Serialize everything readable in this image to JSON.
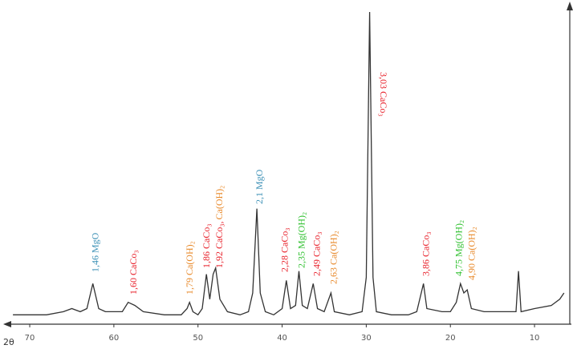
{
  "chart_data": {
    "type": "line",
    "x_label": "2θ",
    "color": "#333333",
    "xlim": [
      73,
      6
    ],
    "ylim": [
      0,
      100
    ],
    "xticks": [
      70,
      60,
      50,
      40,
      30,
      20,
      10
    ],
    "x": [
      72,
      70,
      68,
      66,
      65,
      64,
      63.2,
      62.5,
      61.8,
      61,
      59,
      58.3,
      57.5,
      56.5,
      54,
      52,
      51.3,
      51,
      50.6,
      50,
      49.5,
      49,
      48.6,
      48.2,
      47.9,
      47.4,
      46.5,
      45,
      44,
      43.5,
      43,
      42.6,
      42,
      41,
      40,
      39.5,
      39,
      38.4,
      38,
      37.6,
      37,
      36.3,
      35.8,
      35,
      34.2,
      33.8,
      32,
      30.5,
      30,
      29.6,
      29.2,
      28.8,
      27,
      25,
      24,
      23.2,
      22.8,
      21,
      20,
      19.3,
      18.8,
      18.4,
      18,
      17.5,
      16,
      14,
      12.2,
      11.9,
      11.6,
      10,
      8,
      7,
      6.5
    ],
    "values": [
      3,
      3,
      3,
      4,
      5,
      4,
      5,
      13,
      5,
      4,
      4,
      7,
      6,
      4,
      3,
      3,
      5,
      7,
      4,
      3,
      5,
      16,
      8,
      16,
      18,
      8,
      4,
      3,
      4,
      10,
      37,
      10,
      4,
      3,
      5,
      14,
      5,
      6,
      17,
      6,
      5,
      13,
      5,
      4,
      10,
      4,
      3,
      4,
      15,
      100,
      15,
      4,
      3,
      3,
      4,
      13,
      5,
      4,
      4,
      7,
      13,
      10,
      11,
      5,
      4,
      4,
      4,
      17,
      4,
      5,
      6,
      8,
      10
    ],
    "annotations": [
      {
        "x": 62.5,
        "parts": [
          {
            "text": "1,46 MgO",
            "color": "#3a8fb5"
          }
        ]
      },
      {
        "x": 58,
        "parts": [
          {
            "text": "1,60 CaCo₃",
            "color": "#e8202a"
          }
        ]
      },
      {
        "x": 51.3,
        "parts": [
          {
            "text": "1,79 Ca(OH)₂",
            "color": "#e8892a"
          }
        ]
      },
      {
        "x": 49.3,
        "parts": [
          {
            "text": "1,86 CaCo₃",
            "color": "#e8202a"
          }
        ]
      },
      {
        "x": 47.8,
        "parts": [
          {
            "text": "1,92 CaCo₃,",
            "color": "#e8202a"
          },
          {
            "text": "Ca(OH)₂",
            "color": "#e8892a"
          }
        ]
      },
      {
        "x": 43,
        "parts": [
          {
            "text": "2,1 MgO",
            "color": "#3a8fb5"
          }
        ]
      },
      {
        "x": 40,
        "parts": [
          {
            "text": "2,28 CaCo₃",
            "color": "#e8202a"
          }
        ]
      },
      {
        "x": 38,
        "parts": [
          {
            "text": "2,35 Mg(OH)₂",
            "color": "#2ec02e"
          }
        ]
      },
      {
        "x": 36.2,
        "parts": [
          {
            "text": "2,49 CaCo₃",
            "color": "#e8202a"
          }
        ]
      },
      {
        "x": 34.2,
        "parts": [
          {
            "text": "2,63 Ca(OH)₂",
            "color": "#e8892a"
          }
        ]
      },
      {
        "x": 28.4,
        "parts": [
          {
            "text": "3,03 CaCo₃",
            "color": "#e8202a"
          }
        ]
      },
      {
        "x": 23.2,
        "parts": [
          {
            "text": "3,86 CaCo₃",
            "color": "#e8202a"
          }
        ]
      },
      {
        "x": 19.3,
        "parts": [
          {
            "text": "4,75 Mg(OH)₂",
            "color": "#2ec02e"
          }
        ]
      },
      {
        "x": 17.8,
        "parts": [
          {
            "text": "4,90 Ca(OH)₂",
            "color": "#e8892a"
          }
        ]
      }
    ]
  }
}
